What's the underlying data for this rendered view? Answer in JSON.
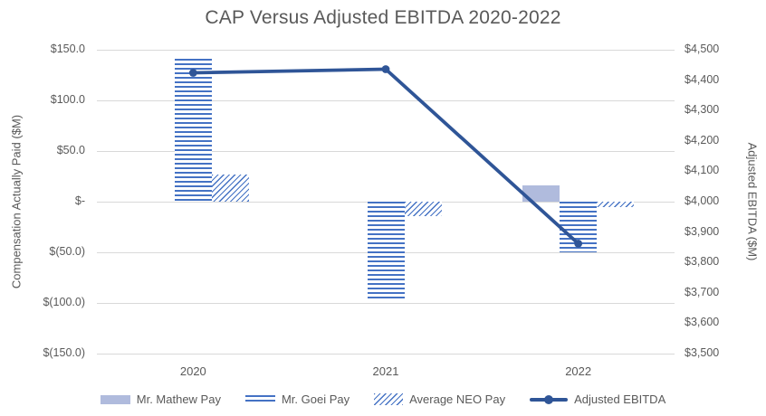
{
  "title": "CAP Versus Adjusted EBITDA 2020-2022",
  "left_axis": {
    "title": "Compensation Actually Paid ($M)",
    "min": -150,
    "max": 150,
    "step": 50,
    "tick_labels": [
      "$150.0",
      "$100.0",
      "$50.0",
      "$-",
      "$(50.0)",
      "$(100.0)",
      "$(150.0)"
    ]
  },
  "right_axis": {
    "title": "Adjusted EBITDA ($M)",
    "min": 3500,
    "max": 4500,
    "step": 100,
    "tick_labels": [
      "$4,500",
      "$4,400",
      "$4,300",
      "$4,200",
      "$4,100",
      "$4,000",
      "$3,900",
      "$3,800",
      "$3,700",
      "$3,600",
      "$3,500"
    ]
  },
  "x_axis": {
    "categories": [
      "2020",
      "2021",
      "2022"
    ]
  },
  "legend": [
    {
      "label": "Mr. Mathew Pay",
      "swatch": "solid-light-blue"
    },
    {
      "label": "Mr. Goei Pay",
      "swatch": "horizontal-stripes"
    },
    {
      "label": "Average NEO Pay",
      "swatch": "diagonal-hatch"
    },
    {
      "label": "Adjusted EBITDA",
      "swatch": "line-with-marker"
    }
  ],
  "colors": {
    "line_dark_blue": "#2F5597",
    "stripe_blue": "#4472C4",
    "solid_light_blue": "#B0BBDD",
    "gridline_gray": "#D9D9D9",
    "text_gray": "#595959"
  },
  "chart_data": {
    "type": "combo (bar + line)",
    "title": "CAP Versus Adjusted EBITDA 2020-2022",
    "categories": [
      "2020",
      "2021",
      "2022"
    ],
    "grid": "horizontal only",
    "legend_position": "bottom",
    "left_ylim": [
      -150,
      150
    ],
    "right_ylim": [
      3500,
      4500
    ],
    "series": [
      {
        "name": "Mr. Mathew Pay",
        "type": "bar",
        "axis": "left",
        "pattern": "solid",
        "values": [
          null,
          null,
          16.5
        ]
      },
      {
        "name": "Mr. Goei Pay",
        "type": "bar",
        "axis": "left",
        "pattern": "horizontal-stripes",
        "values": [
          141,
          -96,
          -50
        ]
      },
      {
        "name": "Average NEO Pay",
        "type": "bar",
        "axis": "left",
        "pattern": "diagonal-hatch",
        "values": [
          27,
          -14,
          -5
        ]
      },
      {
        "name": "Adjusted EBITDA",
        "type": "line",
        "axis": "right",
        "pattern": "line-marker",
        "values": [
          4424,
          4436,
          3862
        ]
      }
    ]
  }
}
